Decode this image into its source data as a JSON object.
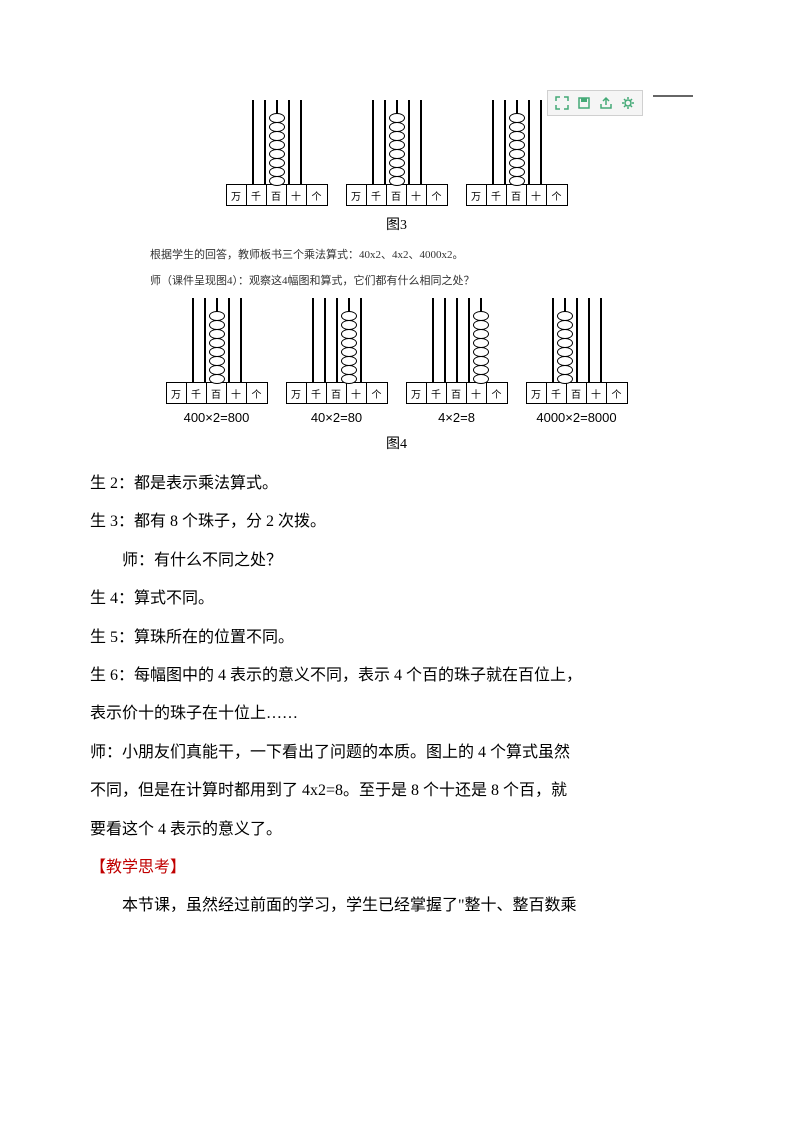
{
  "toolbar": {
    "icons": [
      "expand-icon",
      "save-icon",
      "share-icon",
      "settings-icon"
    ]
  },
  "figure3": {
    "label": "图3",
    "place_labels": [
      "万",
      "千",
      "百",
      "十",
      "个"
    ],
    "abaci": [
      {
        "bead_rod_index": 2,
        "bead_count": 8
      },
      {
        "bead_rod_index": 2,
        "bead_count": 8
      },
      {
        "bead_rod_index": 2,
        "bead_count": 8
      }
    ]
  },
  "intertext1": "根据学生的回答，教师板书三个乘法算式：40x2、4x2、4000x2。",
  "intertext2": "师（课件呈现图4）：观察这4幅图和算式，它们都有什么相同之处？",
  "figure4": {
    "label": "图4",
    "place_labels": [
      "万",
      "千",
      "百",
      "十",
      "个"
    ],
    "abaci": [
      {
        "bead_rod_index": 2,
        "bead_count": 8,
        "equation": "400×2=800"
      },
      {
        "bead_rod_index": 3,
        "bead_count": 8,
        "equation": "40×2=80"
      },
      {
        "bead_rod_index": 4,
        "bead_count": 8,
        "equation": "4×2=8"
      },
      {
        "bead_rod_index": 1,
        "bead_count": 8,
        "equation": "4000×2=8000"
      }
    ]
  },
  "dialogue": {
    "l1": "生 2：都是表示乘法算式。",
    "l2": "生 3：都有 8 个珠子，分 2 次拨。",
    "l3": "师：有什么不同之处？",
    "l4": "生 4：算式不同。",
    "l5": "生 5：算珠所在的位置不同。",
    "l6": "生 6：每幅图中的 4 表示的意义不同，表示 4 个百的珠子就在百位上，",
    "l7": "表示价十的珠子在十位上……",
    "l8": "师：小朋友们真能干，一下看出了问题的本质。图上的 4 个算式虽然",
    "l9": "不同，但是在计算时都用到了 4x2=8。至于是 8 个十还是 8 个百，就",
    "l10": "要看这个 4 表示的意义了。"
  },
  "heading": "【教学思考】",
  "closing": "本节课，虽然经过前面的学习，学生已经掌握了\"整十、整百数乘"
}
